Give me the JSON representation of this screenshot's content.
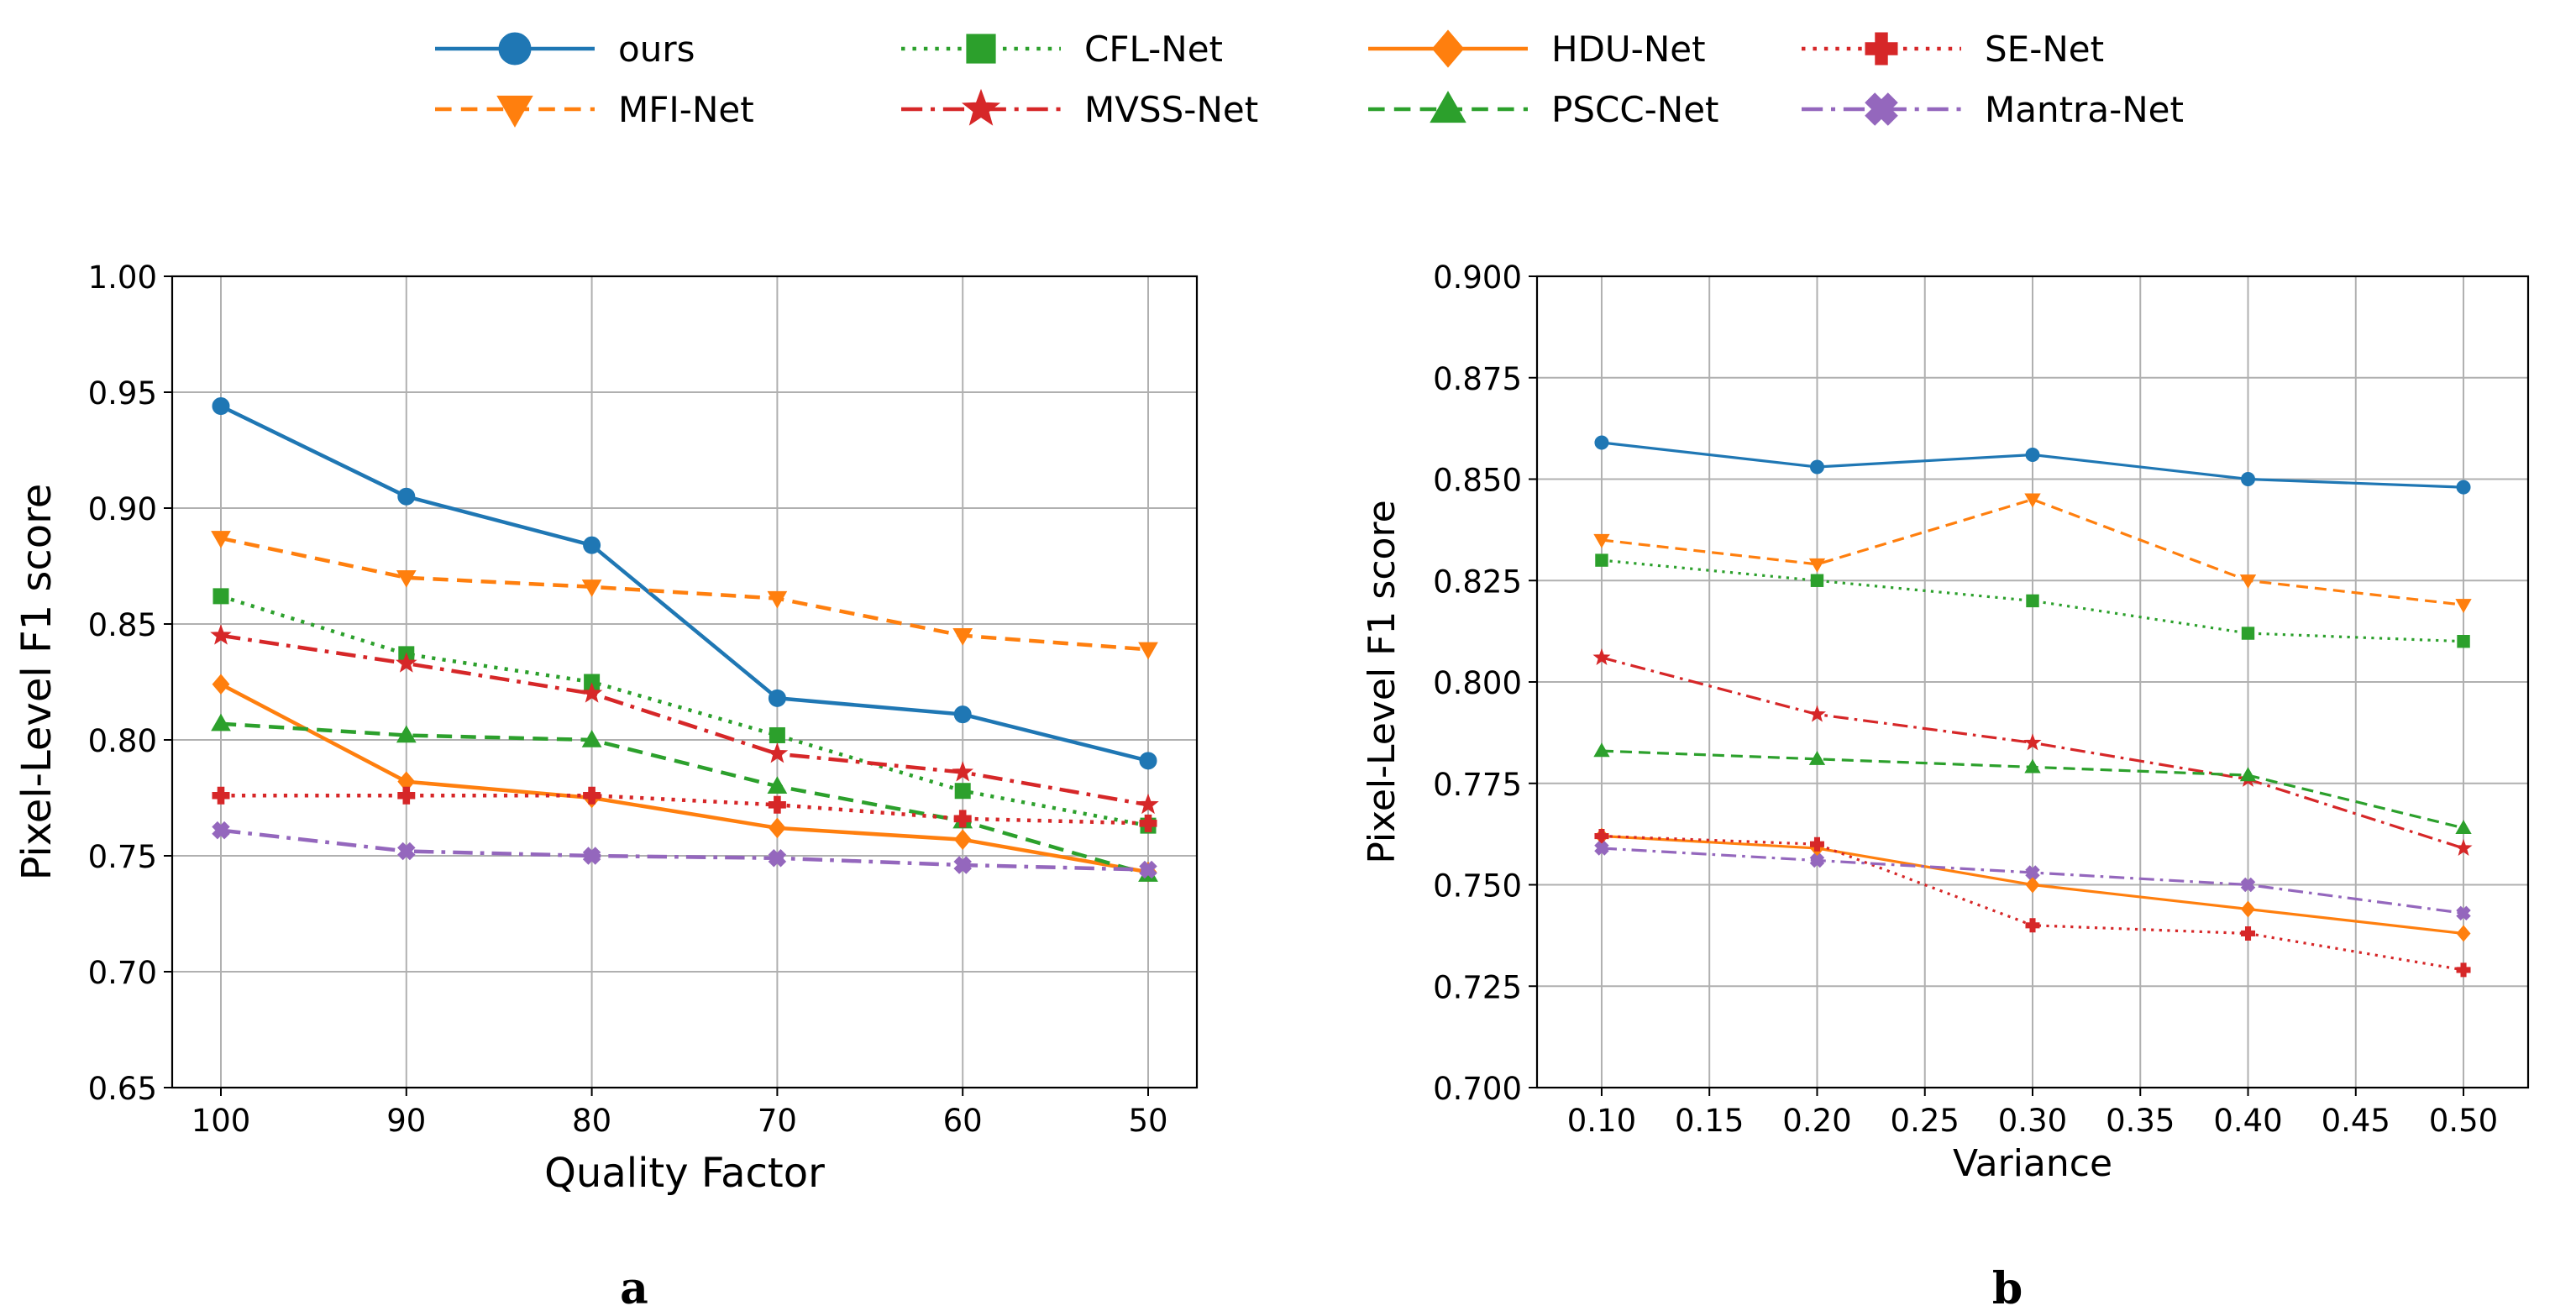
{
  "legend": {
    "entries": [
      {
        "name": "ours",
        "color": "#1f77b4",
        "dash": "solid",
        "marker": "circle"
      },
      {
        "name": "CFL-Net",
        "color": "#2ca02c",
        "dash": "dotted",
        "marker": "square"
      },
      {
        "name": "HDU-Net",
        "color": "#ff7f0e",
        "dash": "solid",
        "marker": "diamond"
      },
      {
        "name": "SE-Net",
        "color": "#d62728",
        "dash": "dotted",
        "marker": "plus"
      },
      {
        "name": "MFI-Net",
        "color": "#ff7f0e",
        "dash": "dashed",
        "marker": "triangle-down"
      },
      {
        "name": "MVSS-Net",
        "color": "#d62728",
        "dash": "dashdot",
        "marker": "star"
      },
      {
        "name": "PSCC-Net",
        "color": "#2ca02c",
        "dash": "dashed",
        "marker": "triangle-up"
      },
      {
        "name": "Mantra-Net",
        "color": "#9467bd",
        "dash": "dashdot",
        "marker": "x-filled"
      }
    ]
  },
  "chart_data": [
    {
      "type": "line",
      "panel_label": "a",
      "xlabel": "Quality Factor",
      "ylabel": "Pixel-Level F1 score",
      "x": [
        100,
        90,
        80,
        70,
        60,
        50
      ],
      "x_tick_labels": [
        "100",
        "90",
        "80",
        "70",
        "60",
        "50"
      ],
      "ylim": [
        0.65,
        1.0
      ],
      "y_ticks": [
        0.65,
        0.7,
        0.75,
        0.8,
        0.85,
        0.9,
        0.95,
        1.0
      ],
      "y_tick_labels": [
        "0.65",
        "0.70",
        "0.75",
        "0.80",
        "0.85",
        "0.90",
        "0.95",
        "1.00"
      ],
      "grid": true,
      "series": [
        {
          "name": "ours",
          "values": [
            0.944,
            0.905,
            0.884,
            0.818,
            0.811,
            0.791
          ]
        },
        {
          "name": "MFI-Net",
          "values": [
            0.887,
            0.87,
            0.866,
            0.861,
            0.845,
            0.839
          ]
        },
        {
          "name": "CFL-Net",
          "values": [
            0.862,
            0.837,
            0.825,
            0.802,
            0.778,
            0.763
          ]
        },
        {
          "name": "MVSS-Net",
          "values": [
            0.845,
            0.833,
            0.82,
            0.794,
            0.786,
            0.772
          ]
        },
        {
          "name": "HDU-Net",
          "values": [
            0.824,
            0.782,
            0.775,
            0.762,
            0.757,
            0.743
          ]
        },
        {
          "name": "PSCC-Net",
          "values": [
            0.807,
            0.802,
            0.8,
            0.78,
            0.765,
            0.742
          ]
        },
        {
          "name": "SE-Net",
          "values": [
            0.776,
            0.776,
            0.776,
            0.772,
            0.766,
            0.764
          ]
        },
        {
          "name": "Mantra-Net",
          "values": [
            0.761,
            0.752,
            0.75,
            0.749,
            0.746,
            0.744
          ]
        }
      ]
    },
    {
      "type": "line",
      "panel_label": "b",
      "xlabel": "Variance",
      "ylabel": "Pixel-Level F1 score",
      "x": [
        0.1,
        0.2,
        0.3,
        0.4,
        0.5
      ],
      "xlim": [
        0.07,
        0.53
      ],
      "x_ticks": [
        0.1,
        0.15,
        0.2,
        0.25,
        0.3,
        0.35,
        0.4,
        0.45,
        0.5
      ],
      "x_tick_labels": [
        "0.10",
        "0.15",
        "0.20",
        "0.25",
        "0.30",
        "0.35",
        "0.40",
        "0.45",
        "0.50"
      ],
      "ylim": [
        0.7,
        0.9
      ],
      "y_ticks": [
        0.7,
        0.725,
        0.75,
        0.775,
        0.8,
        0.825,
        0.85,
        0.875,
        0.9
      ],
      "y_tick_labels": [
        "0.700",
        "0.725",
        "0.750",
        "0.775",
        "0.800",
        "0.825",
        "0.850",
        "0.875",
        "0.900"
      ],
      "grid": true,
      "series": [
        {
          "name": "ours",
          "values": [
            0.859,
            0.853,
            0.856,
            0.85,
            0.848
          ]
        },
        {
          "name": "MFI-Net",
          "values": [
            0.835,
            0.829,
            0.845,
            0.825,
            0.819
          ]
        },
        {
          "name": "CFL-Net",
          "values": [
            0.83,
            0.825,
            0.82,
            0.812,
            0.81
          ]
        },
        {
          "name": "MVSS-Net",
          "values": [
            0.806,
            0.792,
            0.785,
            0.776,
            0.759
          ]
        },
        {
          "name": "PSCC-Net",
          "values": [
            0.783,
            0.781,
            0.779,
            0.777,
            0.764
          ]
        },
        {
          "name": "HDU-Net",
          "values": [
            0.762,
            0.759,
            0.75,
            0.744,
            0.738
          ]
        },
        {
          "name": "SE-Net",
          "values": [
            0.762,
            0.76,
            0.74,
            0.738,
            0.729
          ]
        },
        {
          "name": "Mantra-Net",
          "values": [
            0.759,
            0.756,
            0.753,
            0.75,
            0.743
          ]
        }
      ]
    }
  ]
}
